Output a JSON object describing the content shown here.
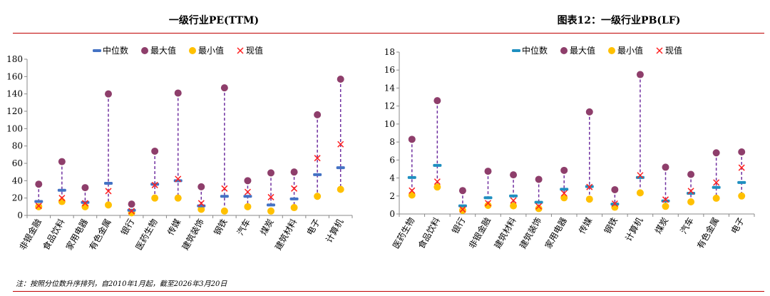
{
  "chart_data": [
    {
      "type": "scatter",
      "title": "一级行业PE(TTM)",
      "xlabel": "",
      "ylabel": "",
      "ylim": [
        0,
        180
      ],
      "yticks": [
        0,
        20,
        40,
        60,
        80,
        100,
        120,
        140,
        160,
        180
      ],
      "legend_position": "top",
      "legend": [
        "中位数",
        "最大值",
        "最小值",
        "现值"
      ],
      "categories": [
        "非银金融",
        "食品饮料",
        "家用电器",
        "有色金属",
        "银行",
        "医药生物",
        "传媒",
        "建筑装饰",
        "钢铁",
        "汽车",
        "煤炭",
        "建筑材料",
        "电子",
        "计算机"
      ],
      "series": [
        {
          "name": "中位数",
          "values": [
            16,
            29,
            15,
            37,
            6,
            36,
            40,
            11,
            22,
            22,
            12,
            19,
            47,
            55
          ]
        },
        {
          "name": "最大值",
          "values": [
            36,
            62,
            32,
            140,
            13,
            74,
            141,
            33,
            147,
            40,
            49,
            50,
            116,
            157
          ]
        },
        {
          "name": "最小值",
          "values": [
            10,
            16,
            10,
            12,
            3,
            20,
            20,
            7,
            5,
            10,
            5,
            9,
            22,
            30
          ]
        },
        {
          "name": "现值",
          "values": [
            11,
            20,
            14,
            28,
            5,
            35,
            42,
            14,
            31,
            27,
            21,
            31,
            66,
            82
          ]
        }
      ]
    },
    {
      "type": "scatter",
      "title": "图表12：一级行业PB(LF)",
      "xlabel": "",
      "ylabel": "",
      "ylim": [
        0,
        18
      ],
      "yticks": [
        0,
        2,
        4,
        6,
        8,
        10,
        12,
        14,
        16,
        18
      ],
      "legend_position": "top",
      "legend": [
        "中位数",
        "最大值",
        "最小值",
        "现值"
      ],
      "categories": [
        "医药生物",
        "食品饮料",
        "银行",
        "非银金融",
        "建筑材料",
        "建筑装饰",
        "家用电器",
        "传媒",
        "钢铁",
        "计算机",
        "煤炭",
        "汽车",
        "有色金属",
        "电子"
      ],
      "series": [
        {
          "name": "中位数",
          "values": [
            4.05,
            5.4,
            0.9,
            1.8,
            2.0,
            1.3,
            2.75,
            3.05,
            1.1,
            4.05,
            1.45,
            2.3,
            2.95,
            3.5
          ]
        },
        {
          "name": "最大值",
          "values": [
            8.3,
            12.6,
            2.6,
            4.75,
            4.35,
            3.85,
            4.85,
            11.35,
            2.7,
            15.5,
            5.2,
            4.4,
            6.8,
            6.9
          ]
        },
        {
          "name": "最小值",
          "values": [
            2.1,
            3.0,
            0.4,
            0.95,
            0.9,
            0.6,
            1.8,
            1.65,
            0.75,
            2.35,
            0.85,
            1.35,
            1.75,
            2.0
          ]
        },
        {
          "name": "现值",
          "values": [
            2.6,
            3.6,
            0.5,
            1.2,
            1.5,
            0.85,
            2.3,
            3.0,
            1.15,
            4.3,
            1.6,
            2.55,
            3.5,
            5.15
          ]
        }
      ]
    }
  ],
  "colors": {
    "median": "#4472c4",
    "median_pb": "#1f8fc0",
    "max": "#8e3e6b",
    "min": "#ffc000",
    "current": "#ff2020",
    "whisker": "#7030a0",
    "rule": "#c00000"
  },
  "footnote": "注：按照分位数升序排列，自2010年1月起，截至2026年3月20日"
}
